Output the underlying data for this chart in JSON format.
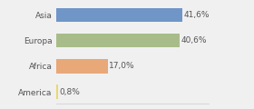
{
  "categories": [
    "Asia",
    "Europa",
    "Africa",
    "America"
  ],
  "values": [
    41.6,
    40.6,
    17.0,
    0.8
  ],
  "labels": [
    "41,6%",
    "40,6%",
    "17,0%",
    "0,8%"
  ],
  "bar_colors": [
    "#7096c8",
    "#a8bc8a",
    "#e8a878",
    "#e8d870"
  ],
  "background_color": "#f0f0f0",
  "xlim": [
    0,
    50
  ],
  "label_fontsize": 6.5,
  "tick_fontsize": 6.5,
  "bar_height": 0.55
}
